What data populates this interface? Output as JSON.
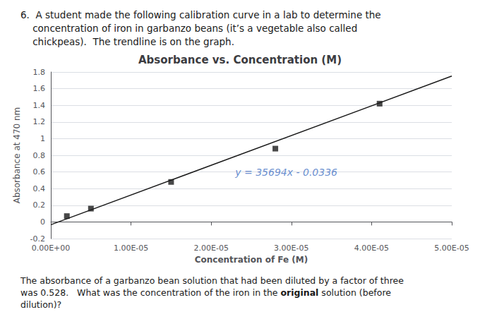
{
  "chart_data": {
    "type": "scatter",
    "header": [
      "6.  A student made the following calibration curve in a lab to determine the",
      "    concentration of iron in garbanzo beans (it’s a vegetable also called",
      "    chickpeas).  The trendline is on the graph."
    ],
    "title": "Absorbance vs. Concentration (M)",
    "xlabel": "Concentration of Fe (M)",
    "ylabel": "Absorbance at 470 nm",
    "series": [
      {
        "type": "scatter",
        "color": "#1a1a1a",
        "marker": "square",
        "x": [
          2e-06,
          5e-06,
          1.5e-05,
          2.8e-05,
          4.1e-05
        ],
        "values": [
          0.07,
          0.16,
          0.48,
          0.88,
          1.42
        ]
      },
      {
        "type": "line",
        "color": "#1a1a1a",
        "line_style": "solid",
        "x": [
          0,
          5e-05
        ],
        "values": [
          -0.0336,
          1.7511
        ]
      }
    ],
    "annotations": [
      {
        "text": "y = 35694x - 0.0336",
        "x": 2.3e-05,
        "y": 0.6,
        "color": "#4472c4"
      }
    ],
    "xlim": [
      0,
      5e-05
    ],
    "xticks": [
      {
        "value": 0,
        "label": "0.00E+00"
      },
      {
        "value": 1e-05,
        "label": "1.00E-05"
      },
      {
        "value": 2e-05,
        "label": "2.00E-05"
      },
      {
        "value": 3e-05,
        "label": "3.00E-05"
      },
      {
        "value": 4e-05,
        "label": "4.00E-05"
      },
      {
        "value": 5e-05,
        "label": "5.00E-05"
      }
    ],
    "ylim": [
      -0.2,
      1.8
    ],
    "yticks": [
      -0.2,
      0,
      0.2,
      0.4,
      0.6,
      0.8,
      1,
      1.2,
      1.4,
      1.6,
      1.8
    ],
    "grid": true,
    "footer": [
      [
        "The absorbance of a garbanzo bean solution that had been diluted by a factor of three"
      ],
      [
        "was 0.528.   What was the concentration of the iron in the ",
        "original",
        " solution (before"
      ],
      [
        "dilution)?"
      ]
    ]
  }
}
